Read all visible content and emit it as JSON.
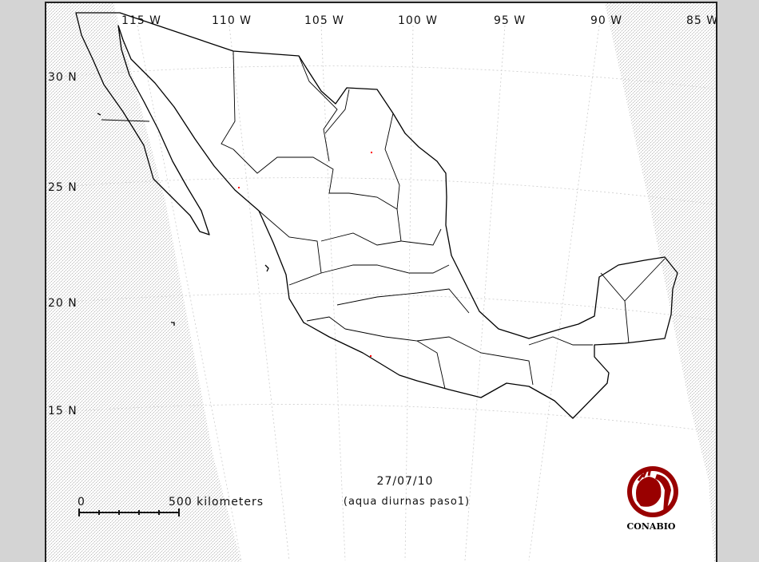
{
  "map": {
    "longitude_labels": [
      "115 W",
      "110 W",
      "105 W",
      "100 W",
      "95 W",
      "90 W",
      "85 W"
    ],
    "latitude_labels": [
      "30 N",
      "25 N",
      "20 N",
      "15 N"
    ],
    "date": "27/07/10",
    "subtitle": "(aqua diurnas paso1)",
    "scale": {
      "zero_label": "0",
      "end_label": "500 kilometers",
      "divisions": 5
    },
    "logo": {
      "text": "CONABIO",
      "color": "#990000"
    },
    "hotspot_color": "#ff0000",
    "background_color": "#d4d4d4"
  }
}
